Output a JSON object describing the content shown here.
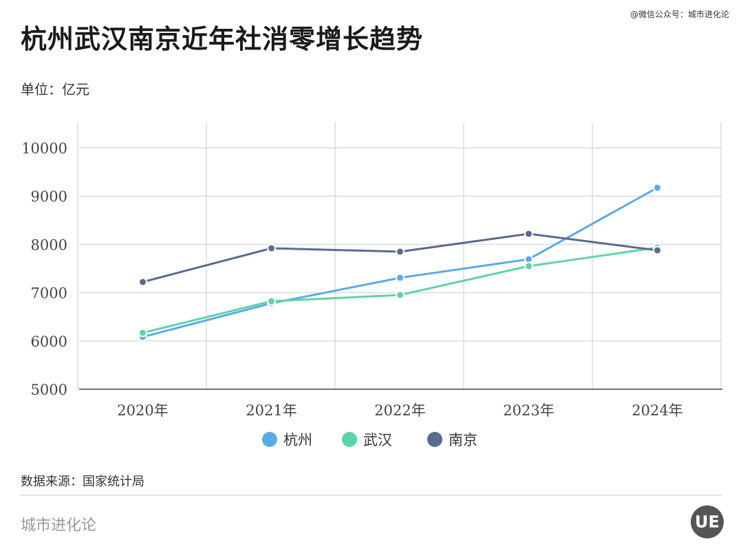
{
  "header": {
    "title": "杭州武汉南京近年社消零增长趋势",
    "credit": "@微信公众号：城市进化论",
    "unit": "单位：亿元"
  },
  "footer": {
    "source": "数据来源：国家统计局",
    "brand": "城市进化论",
    "logo": "UE"
  },
  "chart_data": {
    "type": "line",
    "title": "杭州武汉南京近年社消零增长趋势",
    "ylabel": "单位：亿元",
    "categories": [
      "2020年",
      "2021年",
      "2022年",
      "2023年",
      "2024年"
    ],
    "ylim": [
      5000,
      10000
    ],
    "yticks": [
      5000,
      6000,
      7000,
      8000,
      9000,
      10000
    ],
    "grid": true,
    "legend_position": "bottom",
    "series": [
      {
        "name": "杭州",
        "color": "#5aaae8",
        "values": [
          6083,
          6780,
          7308,
          7693,
          9174
        ]
      },
      {
        "name": "武汉",
        "color": "#5fd3a8",
        "values": [
          6168,
          6823,
          6952,
          7550,
          7934
        ]
      },
      {
        "name": "南京",
        "color": "#5a6a90",
        "values": [
          7222,
          7920,
          7849,
          8219,
          7877
        ]
      }
    ]
  }
}
